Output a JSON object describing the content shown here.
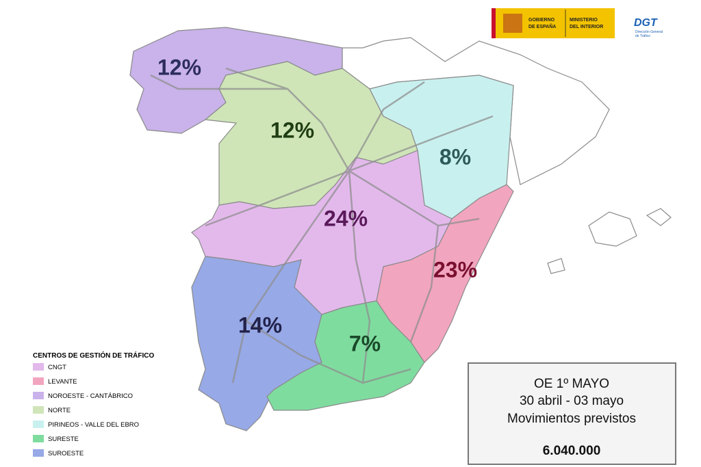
{
  "header": {
    "gov_line1": "GOBIERNO",
    "gov_line2": "DE ESPAÑA",
    "min_line1": "MINISTERIO",
    "min_line2": "DEL INTERIOR",
    "dgt": "DGT",
    "dgt_sub1": "Dirección General",
    "dgt_sub2": "de Tráfico"
  },
  "regions": [
    {
      "label": "12%"
    },
    {
      "label": "12%"
    },
    {
      "label": "8%"
    },
    {
      "label": "24%"
    },
    {
      "label": "23%"
    },
    {
      "label": "14%"
    },
    {
      "label": "7%"
    }
  ],
  "legend": {
    "title": "CENTROS DE GESTIÓN DE TRÁFICO",
    "items": [
      "CNGT",
      "LEVANTE",
      "NOROESTE - CANTÁBRICO",
      "NORTE",
      "PIRINEOS - VALLE DEL EBRO",
      "SURESTE",
      "SUROESTE"
    ]
  },
  "info_box": {
    "line1": "OE 1º MAYO",
    "line2": "30 abril - 03 mayo",
    "line3": "Movimientos previstos",
    "total": "6.040.000"
  }
}
